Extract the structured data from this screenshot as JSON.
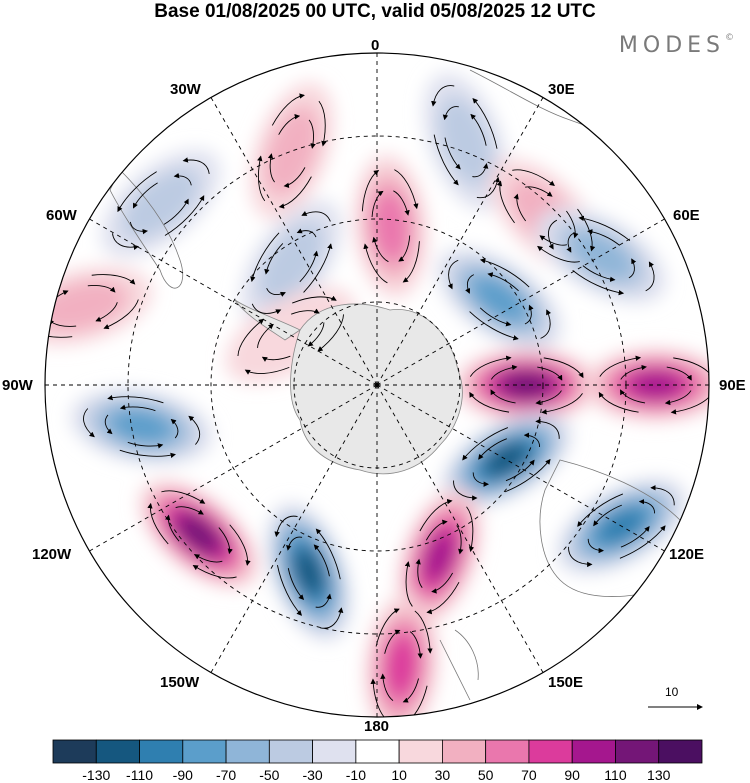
{
  "title": "Base 01/08/2025 00 UTC, valid 05/08/2025 12 UTC",
  "brand": "MODES",
  "brand_mark": "©",
  "longitude_labels": {
    "top": "0",
    "lon30e": "30E",
    "lon60e": "60E",
    "lon90e": "90E",
    "lon120e": "120E",
    "lon150e": "150E",
    "bottom": "180",
    "lon150w": "150W",
    "lon120w": "120W",
    "lon90w": "90W",
    "lon60w": "60W",
    "lon30w": "30W"
  },
  "reference_vector": {
    "value": "10"
  },
  "colorbar": {
    "ticks": [
      "-130",
      "-110",
      "-90",
      "-70",
      "-50",
      "-30",
      "-10",
      "10",
      "30",
      "50",
      "70",
      "90",
      "110",
      "130"
    ],
    "colors": [
      "#1d3b5a",
      "#15577f",
      "#2f7fb0",
      "#5b9ecb",
      "#8fb5d8",
      "#bccbe2",
      "#dfe1ef",
      "#ffffff",
      "#f8d8dd",
      "#f2b0c1",
      "#ea77ad",
      "#dc3b9c",
      "#a5178e",
      "#741677",
      "#4b0f61"
    ]
  },
  "map_data": {
    "projection": "south polar stereographic",
    "field": "anomaly shading with streamlines",
    "centers": [
      {
        "lon": 20,
        "rlat": 0.78,
        "value": -40
      },
      {
        "lon": 45,
        "rlat": 0.72,
        "value": 30
      },
      {
        "lon": 60,
        "rlat": 0.78,
        "value": -45
      },
      {
        "lon": 55,
        "rlat": 0.45,
        "value": -80
      },
      {
        "lon": 90,
        "rlat": 0.45,
        "value": 110
      },
      {
        "lon": 90,
        "rlat": 0.84,
        "value": 90
      },
      {
        "lon": 120,
        "rlat": 0.45,
        "value": -120
      },
      {
        "lon": 120,
        "rlat": 0.85,
        "value": -100
      },
      {
        "lon": 160,
        "rlat": 0.55,
        "value": 100
      },
      {
        "lon": 175,
        "rlat": 0.85,
        "value": 70
      },
      {
        "lon": -160,
        "rlat": 0.6,
        "value": -110
      },
      {
        "lon": -130,
        "rlat": 0.7,
        "value": 120
      },
      {
        "lon": -100,
        "rlat": 0.72,
        "value": -80
      },
      {
        "lon": -75,
        "rlat": 0.92,
        "value": 30
      },
      {
        "lon": -50,
        "rlat": 0.85,
        "value": -40
      },
      {
        "lon": -20,
        "rlat": 0.75,
        "value": 35
      },
      {
        "lon": 5,
        "rlat": 0.48,
        "value": 50
      },
      {
        "lon": -35,
        "rlat": 0.45,
        "value": -30
      },
      {
        "lon": -60,
        "rlat": 0.3,
        "value": 20
      }
    ]
  }
}
